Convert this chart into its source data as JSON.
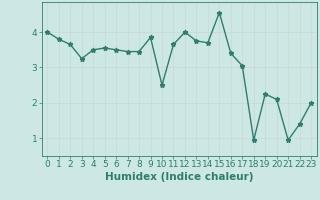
{
  "x": [
    0,
    1,
    2,
    3,
    4,
    5,
    6,
    7,
    8,
    9,
    10,
    11,
    12,
    13,
    14,
    15,
    16,
    17,
    18,
    19,
    20,
    21,
    22,
    23
  ],
  "y": [
    4.0,
    3.8,
    3.65,
    3.25,
    3.5,
    3.55,
    3.5,
    3.45,
    3.45,
    3.85,
    2.5,
    3.65,
    4.0,
    3.75,
    3.7,
    4.55,
    3.4,
    3.05,
    0.95,
    2.25,
    2.1,
    0.95,
    1.4,
    2.0
  ],
  "line_color": "#2e7d6e",
  "marker": "*",
  "marker_size": 3.5,
  "bg_color": "#cde8e4",
  "grid_color": "#afd4cf",
  "xlabel": "Humidex (Indice chaleur)",
  "xlim": [
    -0.5,
    23.5
  ],
  "ylim": [
    0.5,
    4.85
  ],
  "yticks": [
    1,
    2,
    3,
    4
  ],
  "xticks": [
    0,
    1,
    2,
    3,
    4,
    5,
    6,
    7,
    8,
    9,
    10,
    11,
    12,
    13,
    14,
    15,
    16,
    17,
    18,
    19,
    20,
    21,
    22,
    23
  ],
  "tick_color": "#2e7d6e",
  "tick_fontsize": 6.5,
  "xlabel_fontsize": 7.5,
  "linewidth": 1.0
}
